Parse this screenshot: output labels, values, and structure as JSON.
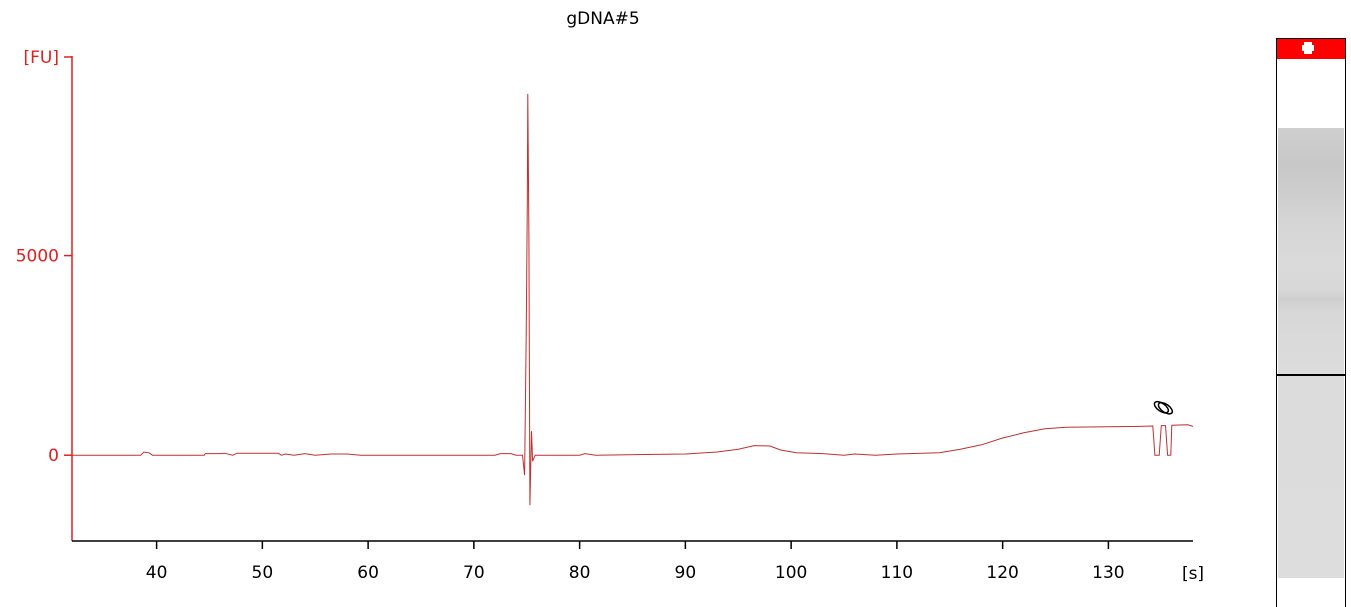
{
  "chart_data": {
    "type": "line",
    "title": "gDNA#5",
    "ylabel": "[FU]",
    "xlabel": "[s]",
    "xlim": [
      32,
      138
    ],
    "ylim": [
      -2150,
      10000
    ],
    "x_ticks": [
      40,
      50,
      60,
      70,
      80,
      90,
      100,
      110,
      120,
      130
    ],
    "y_ticks": [
      0,
      5000
    ],
    "grid": false,
    "colors": {
      "trace": "#c03030",
      "y_axis": "#e02020",
      "ladder_marker": "#ff0000",
      "gel_band": "#000000"
    },
    "series": [
      {
        "values": [
          [
            32,
            0
          ],
          [
            38.5,
            0
          ],
          [
            38.8,
            80
          ],
          [
            39.3,
            60
          ],
          [
            39.6,
            0
          ],
          [
            44.5,
            0
          ],
          [
            44.6,
            40
          ],
          [
            46,
            40
          ],
          [
            46.4,
            50
          ],
          [
            47.2,
            0
          ],
          [
            47.6,
            50
          ],
          [
            51.5,
            50
          ],
          [
            51.8,
            0
          ],
          [
            52.2,
            30
          ],
          [
            53,
            0
          ],
          [
            54,
            40
          ],
          [
            55,
            0
          ],
          [
            56.5,
            30
          ],
          [
            58,
            30
          ],
          [
            59.3,
            0
          ],
          [
            72,
            0
          ],
          [
            72.5,
            40
          ],
          [
            73.5,
            40
          ],
          [
            74,
            0
          ],
          [
            74.6,
            0
          ],
          [
            74.8,
            -500
          ],
          [
            74.95,
            3000
          ],
          [
            75.05,
            6300
          ],
          [
            75.1,
            9050
          ],
          [
            75.2,
            5500
          ],
          [
            75.3,
            -1250
          ],
          [
            75.45,
            600
          ],
          [
            75.55,
            -150
          ],
          [
            75.8,
            0
          ],
          [
            80,
            0
          ],
          [
            80.5,
            40
          ],
          [
            81.5,
            0
          ],
          [
            90,
            30
          ],
          [
            93,
            80
          ],
          [
            95,
            150
          ],
          [
            96.5,
            240
          ],
          [
            98,
            230
          ],
          [
            99,
            130
          ],
          [
            100.5,
            60
          ],
          [
            103,
            40
          ],
          [
            105,
            0
          ],
          [
            106,
            30
          ],
          [
            108,
            0
          ],
          [
            110,
            30
          ],
          [
            114,
            60
          ],
          [
            116,
            150
          ],
          [
            118,
            260
          ],
          [
            120,
            430
          ],
          [
            122,
            560
          ],
          [
            124,
            660
          ],
          [
            126,
            700
          ],
          [
            130,
            710
          ],
          [
            133,
            720
          ],
          [
            134.2,
            730
          ],
          [
            134.4,
            0
          ],
          [
            134.8,
            0
          ],
          [
            135.0,
            740
          ],
          [
            135.4,
            740
          ],
          [
            135.6,
            0
          ],
          [
            135.9,
            0
          ],
          [
            136.0,
            750
          ],
          [
            137.5,
            760
          ],
          [
            138,
            720
          ]
        ]
      }
    ],
    "annotations": [
      {
        "type": "ladder-marker-symbol",
        "x": 135.2,
        "y": 1200
      }
    ]
  },
  "gel": {
    "band_fraction": 0.59
  }
}
